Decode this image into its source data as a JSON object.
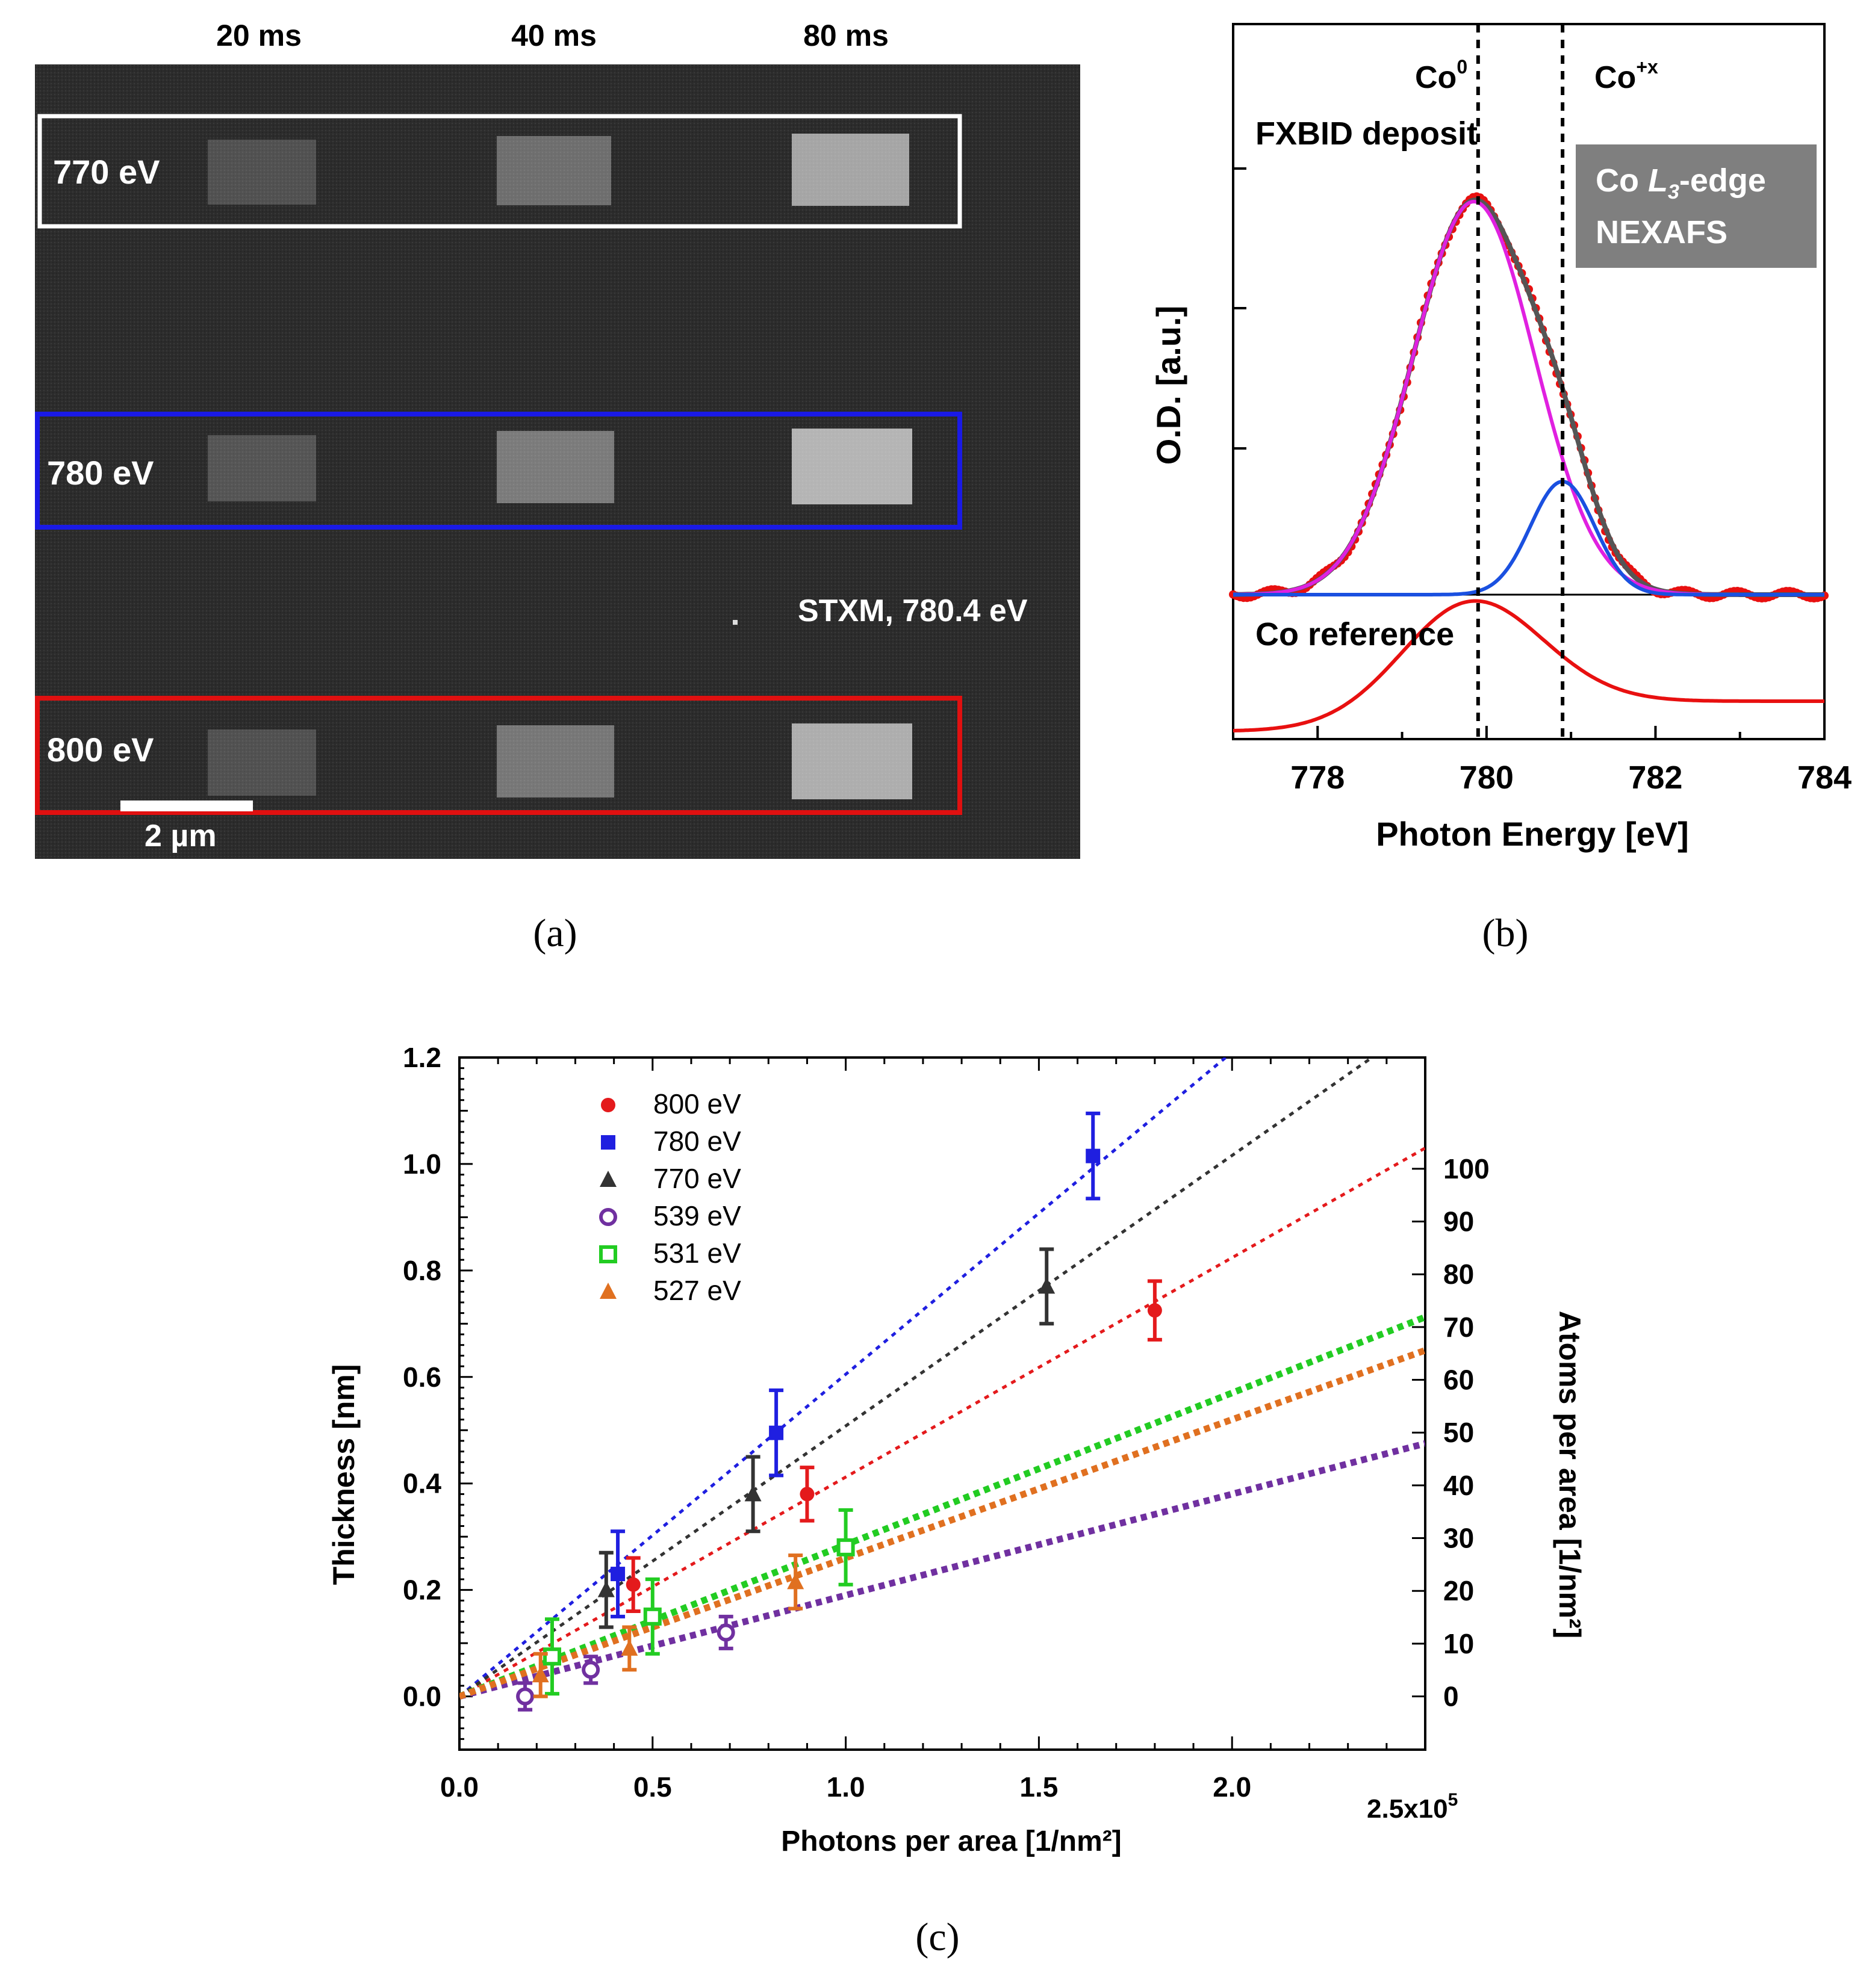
{
  "panel_a": {
    "caption": "(a)",
    "column_labels": [
      "20 ms",
      "40 ms",
      "80 ms"
    ],
    "rows": [
      {
        "label": "770 eV",
        "box_color": "#ffffff"
      },
      {
        "label": "780 eV",
        "box_color": "#1a1ae6"
      },
      {
        "label": "800 eV",
        "box_color": "#e01010"
      }
    ],
    "annotation": "STXM, 780.4 eV",
    "scale_bar_label": "2 µm"
  },
  "panel_b": {
    "caption": "(b)",
    "ylabel": "O.D. [a.u.]",
    "xlabel": "Photon Energy [eV]",
    "xticks": [
      778,
      780,
      782,
      784
    ],
    "xlim": [
      777,
      784
    ],
    "labels": {
      "co0": "Co",
      "co0_sup": "0",
      "coplus": "Co",
      "coplus_sup": "+x",
      "deposit": "FXBID deposit",
      "reference": "Co reference",
      "box_line1_a": "Co ",
      "box_line1_L": "L",
      "box_line1_sub": "3",
      "box_line1_b": "-edge",
      "box_line2": "NEXAFS"
    },
    "box_color": "#7f7f7f",
    "dashed_lines_x": [
      779.9,
      780.9
    ]
  },
  "chart_data": {
    "type": "scatter",
    "caption": "(c)",
    "xlabel": "Photons per area [1/nm²]",
    "ylabel": "Thickness [nm]",
    "ylabel_right": "Atoms per area [1/nm²]",
    "x_multiplier": "2.5x10",
    "x_multiplier_exp": "5",
    "xlim": [
      0,
      2.5
    ],
    "ylim": [
      -0.1,
      1.2
    ],
    "xticks": [
      "0.0",
      "0.5",
      "1.0",
      "1.5",
      "2.0"
    ],
    "yticks": [
      "0.0",
      "0.2",
      "0.4",
      "0.6",
      "0.8",
      "1.0",
      "1.2"
    ],
    "y2ticks": [
      "0",
      "10",
      "20",
      "30",
      "40",
      "50",
      "60",
      "70",
      "80",
      "90",
      "100"
    ],
    "series": [
      {
        "name": "800 eV",
        "color": "#e41a1c",
        "marker": "circle",
        "points": [
          [
            0.45,
            0.21,
            0.05
          ],
          [
            0.9,
            0.38,
            0.05
          ],
          [
            1.8,
            0.725,
            0.055
          ]
        ],
        "slope": 0.412
      },
      {
        "name": "780 eV",
        "color": "#1f1fe0",
        "marker": "square",
        "points": [
          [
            0.41,
            0.23,
            0.08
          ],
          [
            0.82,
            0.495,
            0.08
          ],
          [
            1.64,
            1.015,
            0.08
          ]
        ],
        "slope": 0.605
      },
      {
        "name": "770 eV",
        "color": "#333333",
        "marker": "triangle",
        "points": [
          [
            0.38,
            0.2,
            0.07
          ],
          [
            0.76,
            0.38,
            0.07
          ],
          [
            1.52,
            0.77,
            0.07
          ]
        ],
        "slope": 0.508
      },
      {
        "name": "539 eV",
        "color": "#7030a0",
        "marker": "open-circle",
        "points": [
          [
            0.17,
            0.0,
            0.025
          ],
          [
            0.34,
            0.05,
            0.025
          ],
          [
            0.69,
            0.12,
            0.03
          ]
        ],
        "slope": 0.19
      },
      {
        "name": "531 eV",
        "color": "#22cc22",
        "marker": "open-square",
        "points": [
          [
            0.24,
            0.075,
            0.07
          ],
          [
            0.5,
            0.15,
            0.07
          ],
          [
            1.0,
            0.28,
            0.07
          ]
        ],
        "slope": 0.285
      },
      {
        "name": "527 eV",
        "color": "#e07020",
        "marker": "triangle",
        "points": [
          [
            0.21,
            0.04,
            0.04
          ],
          [
            0.44,
            0.09,
            0.04
          ],
          [
            0.87,
            0.215,
            0.05
          ]
        ],
        "slope": 0.26
      }
    ]
  }
}
